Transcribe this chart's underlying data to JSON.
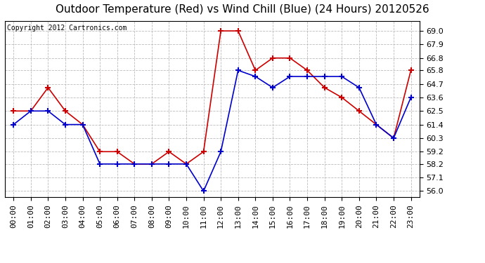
{
  "title": "Outdoor Temperature (Red) vs Wind Chill (Blue) (24 Hours) 20120526",
  "copyright_text": "Copyright 2012 Cartronics.com",
  "x_labels": [
    "00:00",
    "01:00",
    "02:00",
    "03:00",
    "04:00",
    "05:00",
    "06:00",
    "07:00",
    "08:00",
    "09:00",
    "10:00",
    "11:00",
    "12:00",
    "13:00",
    "14:00",
    "15:00",
    "16:00",
    "17:00",
    "18:00",
    "19:00",
    "20:00",
    "21:00",
    "22:00",
    "23:00"
  ],
  "red_data": [
    62.5,
    62.5,
    64.4,
    62.5,
    61.4,
    59.2,
    59.2,
    58.2,
    58.2,
    59.2,
    58.2,
    59.2,
    69.0,
    69.0,
    65.8,
    66.8,
    66.8,
    65.8,
    64.4,
    63.6,
    62.5,
    61.4,
    60.3,
    65.8
  ],
  "blue_data": [
    61.4,
    62.5,
    62.5,
    61.4,
    61.4,
    58.2,
    58.2,
    58.2,
    58.2,
    58.2,
    58.2,
    56.0,
    59.2,
    65.8,
    65.3,
    64.4,
    65.3,
    65.3,
    65.3,
    65.3,
    64.4,
    61.4,
    60.3,
    63.6
  ],
  "ylim": [
    55.5,
    69.8
  ],
  "yticks": [
    56.0,
    57.1,
    58.2,
    59.2,
    60.3,
    61.4,
    62.5,
    63.6,
    64.7,
    65.8,
    66.8,
    67.9,
    69.0
  ],
  "red_color": "#cc0000",
  "blue_color": "#0000cc",
  "bg_color": "#ffffff",
  "grid_color": "#bbbbbb",
  "title_fontsize": 11,
  "axis_fontsize": 8,
  "copyright_fontsize": 7
}
